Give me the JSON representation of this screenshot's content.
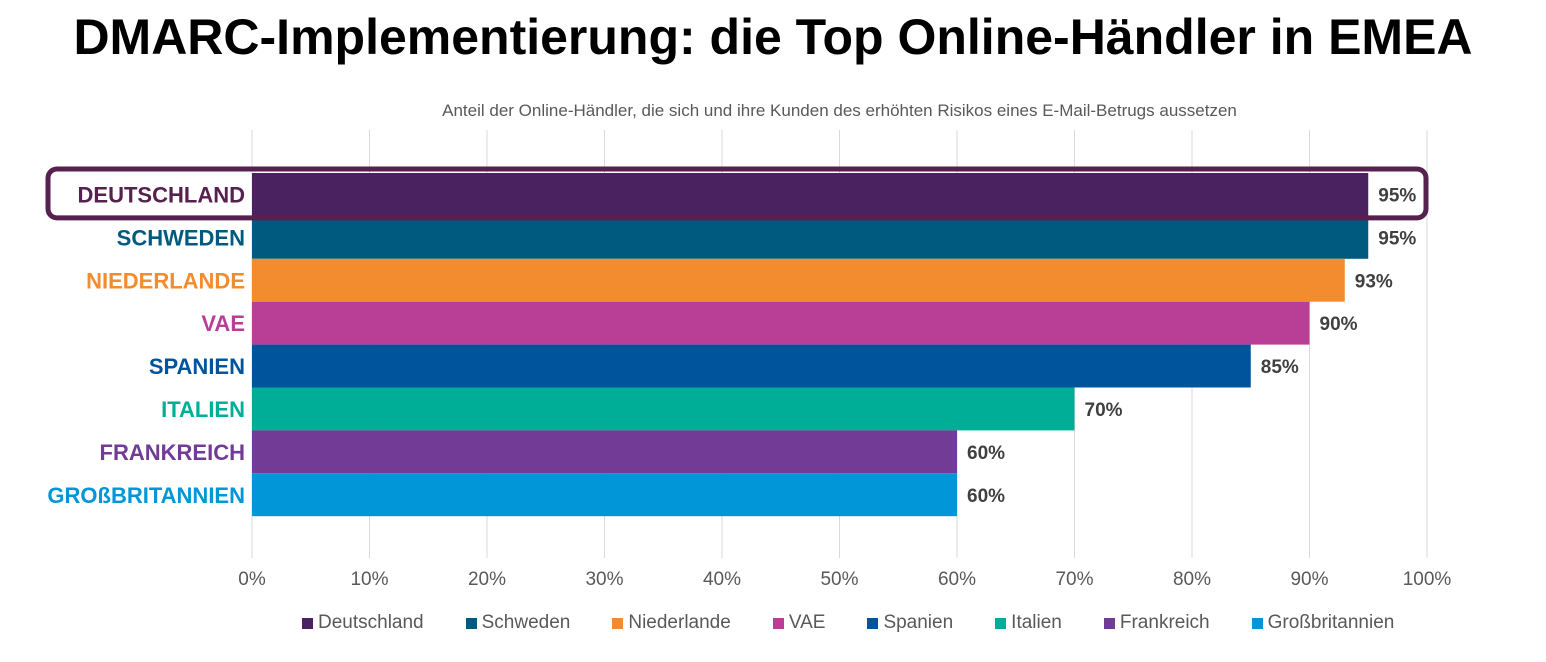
{
  "title": "DMARC-Implementierung: die Top Online-Händler in EMEA",
  "chart_data": {
    "type": "bar",
    "orientation": "horizontal",
    "subtitle": "Anteil der Online-Händler, die sich und ihre Kunden des erhöhten Risikos eines E-Mail-Betrugs aussetzen",
    "categories": [
      "DEUTSCHLAND",
      "SCHWEDEN",
      "NIEDERLANDE",
      "VAE",
      "SPANIEN",
      "ITALIEN",
      "FRANKREICH",
      "GROßBRITANNIEN"
    ],
    "values": [
      95,
      95,
      93,
      90,
      85,
      70,
      60,
      60
    ],
    "value_labels": [
      "95%",
      "95%",
      "93%",
      "90%",
      "85%",
      "70%",
      "60%",
      "60%"
    ],
    "colors": [
      "#4a2260",
      "#005a80",
      "#f28c2e",
      "#b83e96",
      "#00549c",
      "#00ae97",
      "#713b96",
      "#0096d7"
    ],
    "highlighted_category": "DEUTSCHLAND",
    "highlight_color": "#56204f",
    "xlim": [
      0,
      100
    ],
    "x_ticks": [
      "0%",
      "10%",
      "20%",
      "30%",
      "40%",
      "50%",
      "60%",
      "70%",
      "80%",
      "90%",
      "100%"
    ],
    "grid": true,
    "legend_position": "bottom",
    "legend": [
      "Deutschland",
      "Schweden",
      "Niederlande",
      "VAE",
      "Spanien",
      "Italien",
      "Frankreich",
      "Großbritannien"
    ]
  }
}
